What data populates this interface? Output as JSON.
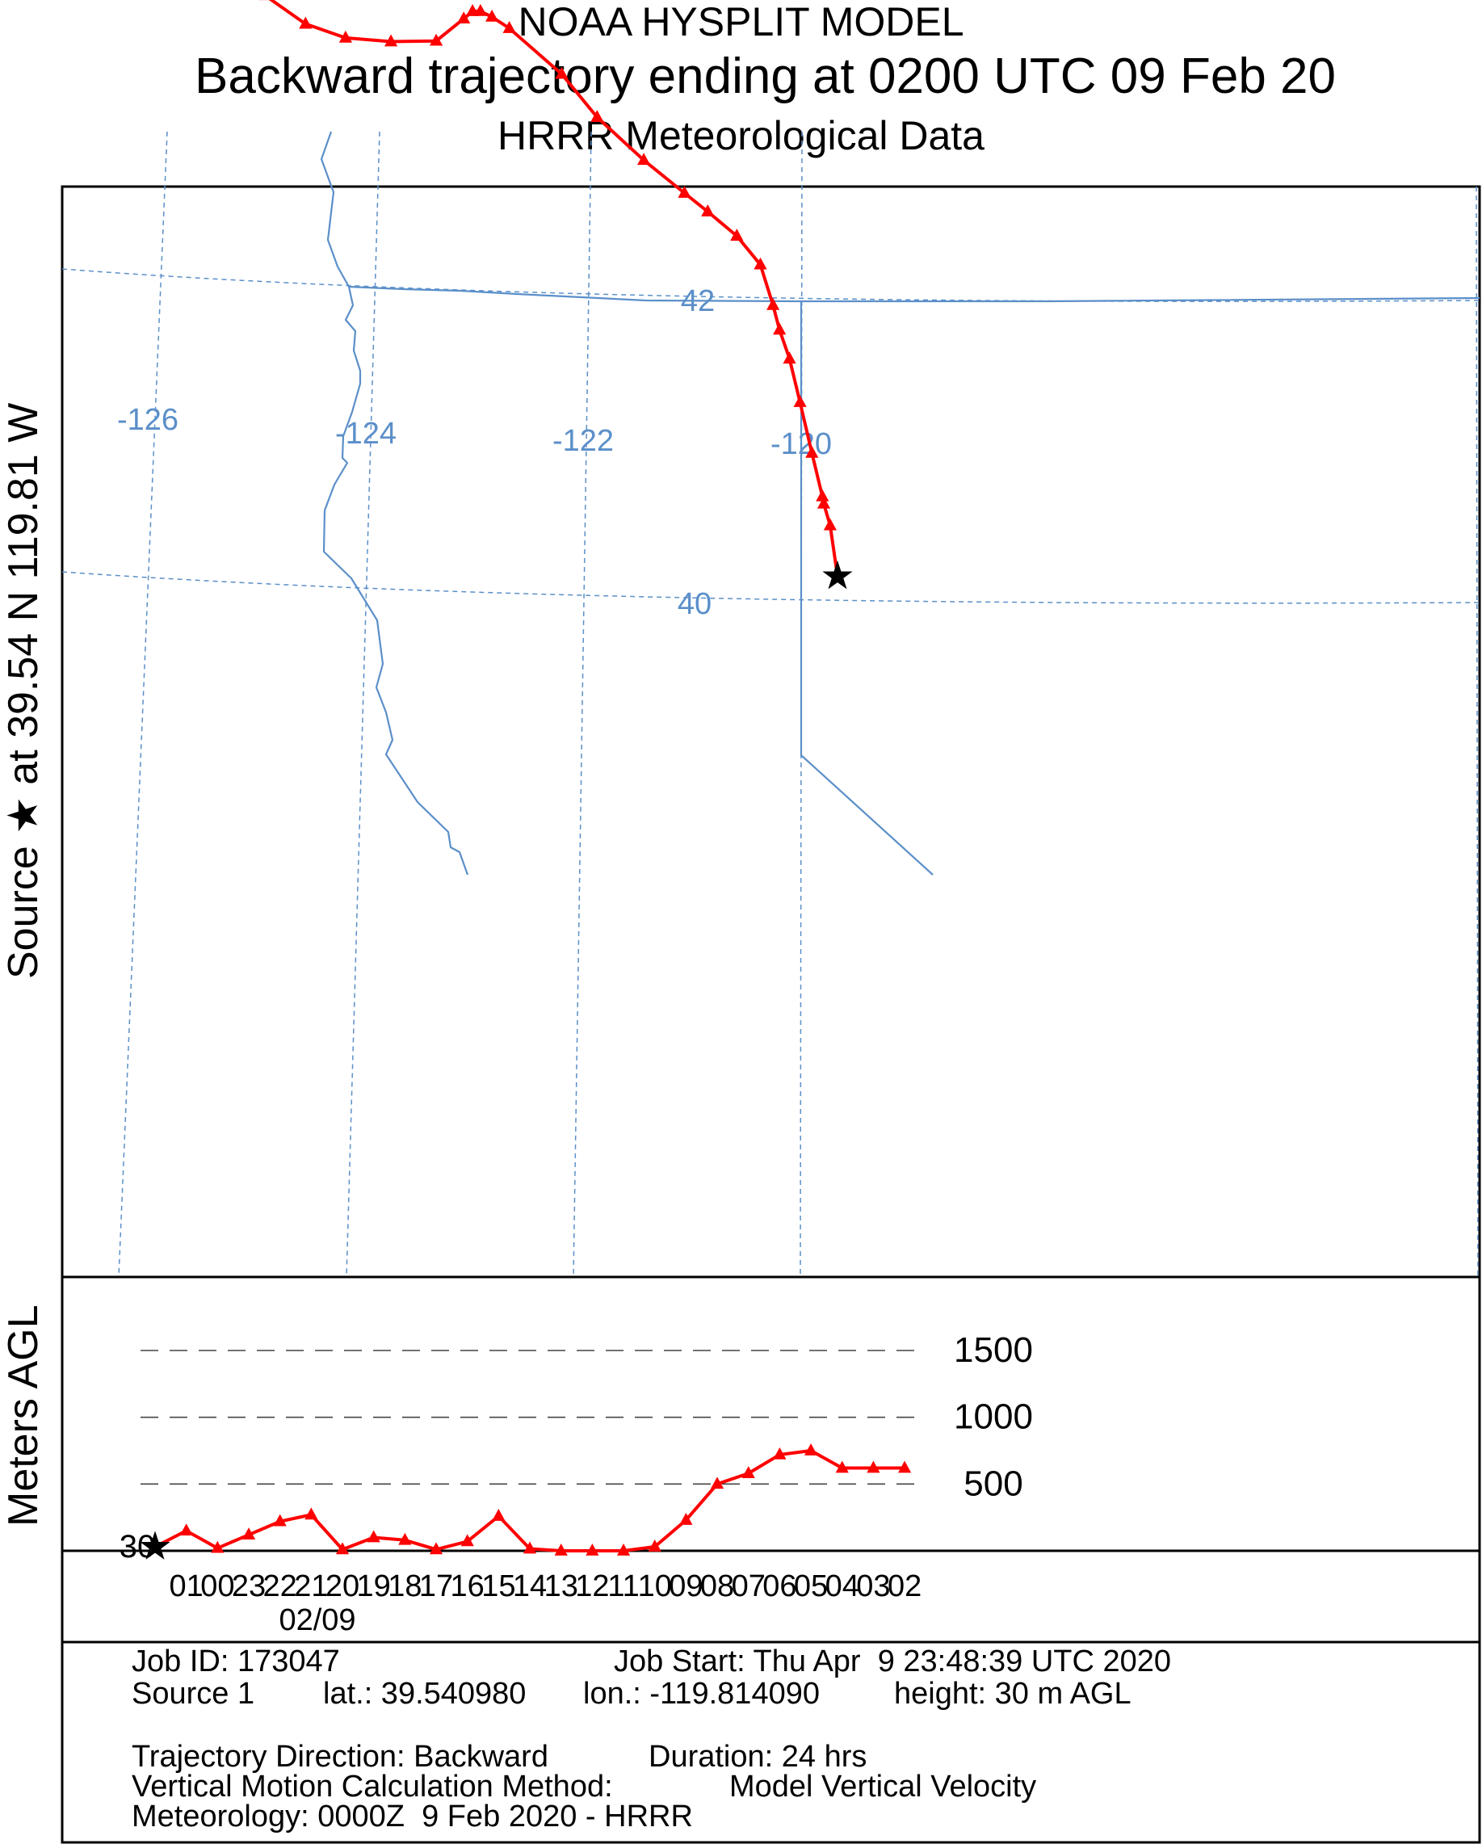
{
  "header": {
    "title": "NOAA HYSPLIT MODEL",
    "subtitle": "Backward trajectory ending at 0200 UTC 09 Feb 20",
    "data_source": "HRRR Meteorological Data"
  },
  "side_label": {
    "text": "Source ★  at   39.54 N  119.81 W"
  },
  "map": {
    "lon_labels": [
      "-126",
      "-124",
      "-122",
      "-120"
    ],
    "lat_labels": [
      "42",
      "40"
    ],
    "colors": {
      "grid": "#5b8fc9",
      "boundary": "#5b8fc9",
      "trajectory": "#ff0000",
      "source": "#000000"
    }
  },
  "chart_data": {
    "type": "line",
    "title": "Backward trajectory ending at 0200 UTC 09 Feb 20",
    "ylabel": "Meters AGL",
    "x": [
      "02",
      "01",
      "00",
      "23",
      "22",
      "21",
      "20",
      "19",
      "18",
      "17",
      "16",
      "15",
      "14",
      "13",
      "12",
      "11",
      "10",
      "09",
      "08",
      "07",
      "06",
      "05",
      "04",
      "03",
      "02"
    ],
    "x_display_order": [
      "01",
      "00",
      "23",
      "22",
      "21",
      "20",
      "19",
      "18",
      "17",
      "16",
      "15",
      "14",
      "13",
      "12",
      "11",
      "10",
      "09",
      "08",
      "07",
      "06",
      "05",
      "04",
      "03",
      "02"
    ],
    "date_label": "02/09",
    "source_height_label": "30",
    "yticks": [
      500,
      1000,
      1500
    ],
    "ylim": [
      0,
      1800
    ],
    "series": [
      {
        "values": [
          30,
          150,
          20,
          120,
          220,
          270,
          10,
          100,
          80,
          10,
          70,
          260,
          15,
          0,
          0,
          0,
          30,
          230,
          500,
          580,
          720,
          750,
          620,
          620,
          620
        ]
      }
    ],
    "trajectory_map": {
      "lon": [
        -119.76,
        -119.81,
        -119.86,
        -119.87,
        -119.95,
        -120.04,
        -120.12,
        -120.2,
        -120.25,
        -120.35,
        -120.55,
        -120.8,
        -121.0,
        -121.35,
        -121.75,
        -122.05,
        -122.5,
        -122.65,
        -122.75,
        -122.82,
        -122.9,
        -123.15,
        -123.55,
        -123.95,
        -124.3,
        -124.65,
        -125.05,
        -125.45
      ],
      "lat": [
        40.1,
        40.45,
        40.6,
        40.65,
        40.95,
        41.3,
        41.6,
        41.8,
        41.97,
        42.25,
        42.45,
        42.62,
        42.75,
        42.98,
        43.28,
        43.58,
        43.9,
        43.98,
        44.02,
        44.02,
        43.97,
        43.82,
        43.82,
        43.85,
        43.95,
        44.15,
        44.37,
        44.6
      ]
    }
  },
  "info": {
    "line1_left": "Job ID: 173047",
    "line1_right": "Job Start: Thu Apr  9 23:48:39 UTC 2020",
    "line2_source": "Source 1",
    "line2_lat": "lat.: 39.540980",
    "line2_lon": "lon.: -119.814090",
    "line2_height": "height: 30 m AGL",
    "line3_direction": "Trajectory Direction: Backward",
    "line3_duration": "Duration: 24 hrs",
    "line4_method_label": "Vertical Motion Calculation Method:",
    "line4_method_value": "Model Vertical Velocity",
    "line5_met": "Meteorology: 0000Z  9 Feb 2020 - HRRR"
  }
}
